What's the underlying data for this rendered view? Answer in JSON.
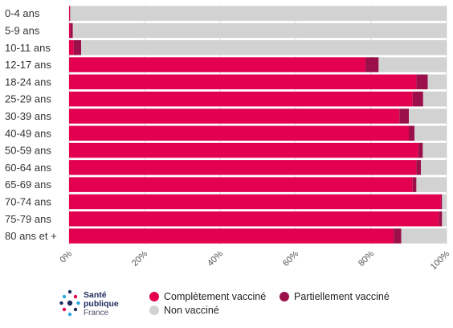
{
  "chart_data": {
    "type": "bar",
    "orientation": "horizontal",
    "stacked": true,
    "categories": [
      "0-4 ans",
      "5-9 ans",
      "10-11 ans",
      "12-17 ans",
      "18-24 ans",
      "25-29 ans",
      "30-39 ans",
      "40-49 ans",
      "50-59 ans",
      "60-64 ans",
      "65-69 ans",
      "70-74 ans",
      "75-79 ans",
      "80 ans et +"
    ],
    "series": [
      {
        "name": "Complètement vacciné",
        "color": "#e3004f",
        "values": [
          0.2,
          0.3,
          1.2,
          78.5,
          92,
          91,
          87.5,
          90,
          92.5,
          92,
          91,
          98.5,
          98,
          86
        ]
      },
      {
        "name": "Partiellement vacciné",
        "color": "#9b0f4a",
        "values": [
          0.1,
          0.7,
          2.0,
          3.5,
          3,
          2.8,
          2.5,
          1.5,
          1.2,
          1.2,
          1.0,
          0.3,
          0.8,
          2
        ]
      },
      {
        "name": "Non vacciné",
        "color": "#d2d2d2",
        "values": [
          99.7,
          99.0,
          96.8,
          18,
          5,
          6.2,
          10,
          8.5,
          6.3,
          6.8,
          8,
          1.2,
          1.2,
          12
        ]
      }
    ],
    "xlim": [
      0,
      100
    ],
    "xticks": [
      "0%",
      "20%",
      "40%",
      "60%",
      "80%",
      "100%"
    ],
    "tick_values": [
      0,
      20,
      40,
      60,
      80,
      100
    ],
    "grid": true,
    "legend_placement": "bottom"
  },
  "logo": {
    "line1": "Santé",
    "line2": "publique",
    "line3": "France"
  },
  "legend": {
    "complete": "Complètement vacciné",
    "partial": "Partiellement vacciné",
    "none": "Non vacciné"
  }
}
